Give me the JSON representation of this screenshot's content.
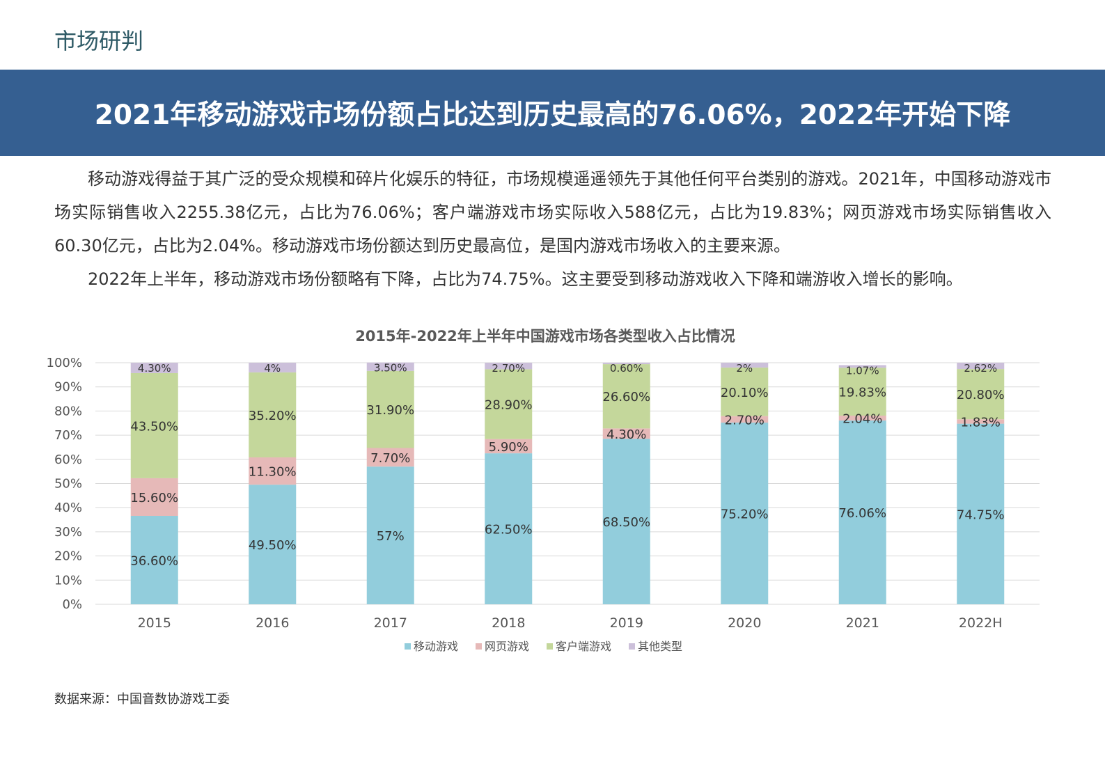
{
  "section_label": "市场研判",
  "banner_title": "2021年移动游戏市场份额占比达到历史最高的76.06%，2022年开始下降",
  "paragraphs": [
    "移动游戏得益于其广泛的受众规模和碎片化娱乐的特征，市场规模遥遥领先于其他任何平台类别的游戏。2021年，中国移动游戏市场实际销售收入2255.38亿元，占比为76.06%；客户端游戏市场实际收入588亿元，占比为19.83%；网页游戏市场实际销售收入60.30亿元，占比为2.04%。移动游戏市场份额达到历史最高位，是国内游戏市场收入的主要来源。",
    "2022年上半年，移动游戏市场份额略有下降，占比为74.75%。这主要受到移动游戏收入下降和端游收入增长的影响。"
  ],
  "source": "数据来源：中国音数协游戏工委",
  "chart_data": {
    "type": "bar",
    "stacked": true,
    "title": "2015年-2022年上半年中国游戏市场各类型收入占比情况",
    "categories": [
      "2015",
      "2016",
      "2017",
      "2018",
      "2019",
      "2020",
      "2021",
      "2022H"
    ],
    "y_ticks": [
      "0%",
      "10%",
      "20%",
      "30%",
      "40%",
      "50%",
      "60%",
      "70%",
      "80%",
      "90%",
      "100%"
    ],
    "ylim": [
      0,
      100
    ],
    "grid": true,
    "legend_position": "bottom",
    "series": [
      {
        "name": "移动游戏",
        "color": "#92cddc",
        "values": [
          36.6,
          49.5,
          57,
          62.5,
          68.5,
          75.2,
          76.06,
          74.75
        ],
        "labels": [
          "36.60%",
          "49.50%",
          "57%",
          "62.50%",
          "68.50%",
          "75.20%",
          "76.06%",
          "74.75%"
        ]
      },
      {
        "name": "网页游戏",
        "color": "#e6b9b8",
        "values": [
          15.6,
          11.3,
          7.7,
          5.9,
          4.3,
          2.7,
          2.04,
          1.83
        ],
        "labels": [
          "15.60%",
          "11.30%",
          "7.70%",
          "5.90%",
          "4.30%",
          "2.70%",
          "2.04%",
          "1.83%"
        ]
      },
      {
        "name": "客户端游戏",
        "color": "#c4d79b",
        "values": [
          43.5,
          35.2,
          31.9,
          28.9,
          26.6,
          20.1,
          19.83,
          20.8
        ],
        "labels": [
          "43.50%",
          "35.20%",
          "31.90%",
          "28.90%",
          "26.60%",
          "20.10%",
          "19.83%",
          "20.80%"
        ]
      },
      {
        "name": "其他类型",
        "color": "#ccc0da",
        "values": [
          4.3,
          4,
          3.5,
          2.7,
          0.6,
          2,
          1.07,
          2.62
        ],
        "labels": [
          "4.30%",
          "4%",
          "3.50%",
          "2.70%",
          "0.60%",
          "2%",
          "1.07%",
          "2.62%"
        ]
      }
    ]
  }
}
